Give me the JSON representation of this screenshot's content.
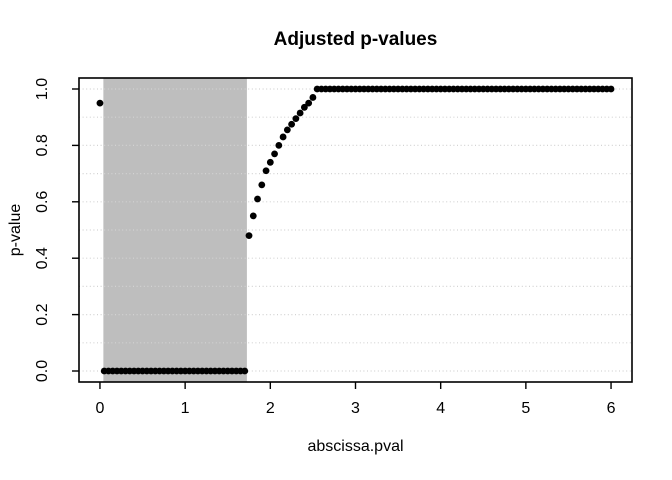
{
  "title": "Adjusted p-values",
  "chart_data": {
    "type": "scatter",
    "title": "Adjusted p-values",
    "xlabel": "abscissa.pval",
    "ylabel": "p-value",
    "xlim": [
      -0.246,
      6.246
    ],
    "ylim": [
      -0.039,
      1.039
    ],
    "x_ticks": [
      0,
      1,
      2,
      3,
      4,
      5,
      6
    ],
    "x_tick_labels": [
      "0",
      "1",
      "2",
      "3",
      "4",
      "5",
      "6"
    ],
    "y_ticks": [
      0.0,
      0.2,
      0.4,
      0.6,
      0.8,
      1.0
    ],
    "y_tick_labels": [
      "0.0",
      "0.2",
      "0.4",
      "0.6",
      "0.8",
      "1.0"
    ],
    "grid": {
      "horizontal_lines_y": [
        0,
        0.1,
        0.2,
        0.3,
        0.4,
        0.5,
        0.6,
        0.7,
        0.8,
        0.9,
        1.0
      ],
      "style": "dotted",
      "vertical": false
    },
    "legend": null,
    "rejection_region": {
      "x_start": 0.04,
      "x_end": 1.725,
      "color": "#BEBEBE"
    },
    "colors": {
      "points": "#000000",
      "region": "#BEBEBE",
      "grid": "#D3D3D3",
      "axis": "#000000"
    },
    "point_style": {
      "shape": "filled-circle",
      "radius_px": 3.4
    },
    "points": [
      [
        0,
        0.95
      ],
      [
        0.05,
        0
      ],
      [
        0.1,
        0
      ],
      [
        0.15,
        0
      ],
      [
        0.2,
        0
      ],
      [
        0.25,
        0
      ],
      [
        0.3,
        0
      ],
      [
        0.35,
        0
      ],
      [
        0.4,
        0
      ],
      [
        0.45,
        0
      ],
      [
        0.5,
        0
      ],
      [
        0.55,
        0
      ],
      [
        0.6,
        0
      ],
      [
        0.65,
        0
      ],
      [
        0.7,
        0
      ],
      [
        0.75,
        0
      ],
      [
        0.8,
        0
      ],
      [
        0.85,
        0
      ],
      [
        0.9,
        0
      ],
      [
        0.95,
        0
      ],
      [
        1,
        0
      ],
      [
        1.05,
        0
      ],
      [
        1.1,
        0
      ],
      [
        1.15,
        0
      ],
      [
        1.2,
        0
      ],
      [
        1.25,
        0
      ],
      [
        1.3,
        0
      ],
      [
        1.35,
        0
      ],
      [
        1.4,
        0
      ],
      [
        1.45,
        0
      ],
      [
        1.5,
        0
      ],
      [
        1.55,
        0
      ],
      [
        1.6,
        0
      ],
      [
        1.65,
        0
      ],
      [
        1.7,
        0
      ],
      [
        1.75,
        0.48
      ],
      [
        1.8,
        0.55
      ],
      [
        1.85,
        0.61
      ],
      [
        1.9,
        0.66
      ],
      [
        1.95,
        0.71
      ],
      [
        2,
        0.74
      ],
      [
        2.05,
        0.77
      ],
      [
        2.1,
        0.8
      ],
      [
        2.15,
        0.83
      ],
      [
        2.2,
        0.855
      ],
      [
        2.25,
        0.875
      ],
      [
        2.3,
        0.895
      ],
      [
        2.35,
        0.915
      ],
      [
        2.4,
        0.935
      ],
      [
        2.45,
        0.95
      ],
      [
        2.5,
        0.97
      ],
      [
        2.55,
        1
      ],
      [
        2.6,
        1
      ],
      [
        2.65,
        1
      ],
      [
        2.7,
        1
      ],
      [
        2.75,
        1
      ],
      [
        2.8,
        1
      ],
      [
        2.85,
        1
      ],
      [
        2.9,
        1
      ],
      [
        2.95,
        1
      ],
      [
        3,
        1
      ],
      [
        3.05,
        1
      ],
      [
        3.1,
        1
      ],
      [
        3.15,
        1
      ],
      [
        3.2,
        1
      ],
      [
        3.25,
        1
      ],
      [
        3.3,
        1
      ],
      [
        3.35,
        1
      ],
      [
        3.4,
        1
      ],
      [
        3.45,
        1
      ],
      [
        3.5,
        1
      ],
      [
        3.55,
        1
      ],
      [
        3.6,
        1
      ],
      [
        3.65,
        1
      ],
      [
        3.7,
        1
      ],
      [
        3.75,
        1
      ],
      [
        3.8,
        1
      ],
      [
        3.85,
        1
      ],
      [
        3.9,
        1
      ],
      [
        3.95,
        1
      ],
      [
        4,
        1
      ],
      [
        4.05,
        1
      ],
      [
        4.1,
        1
      ],
      [
        4.15,
        1
      ],
      [
        4.2,
        1
      ],
      [
        4.25,
        1
      ],
      [
        4.3,
        1
      ],
      [
        4.35,
        1
      ],
      [
        4.4,
        1
      ],
      [
        4.45,
        1
      ],
      [
        4.5,
        1
      ],
      [
        4.55,
        1
      ],
      [
        4.6,
        1
      ],
      [
        4.65,
        1
      ],
      [
        4.7,
        1
      ],
      [
        4.75,
        1
      ],
      [
        4.8,
        1
      ],
      [
        4.85,
        1
      ],
      [
        4.9,
        1
      ],
      [
        4.95,
        1
      ],
      [
        5,
        1
      ],
      [
        5.05,
        1
      ],
      [
        5.1,
        1
      ],
      [
        5.15,
        1
      ],
      [
        5.2,
        1
      ],
      [
        5.25,
        1
      ],
      [
        5.3,
        1
      ],
      [
        5.35,
        1
      ],
      [
        5.4,
        1
      ],
      [
        5.45,
        1
      ],
      [
        5.5,
        1
      ],
      [
        5.55,
        1
      ],
      [
        5.6,
        1
      ],
      [
        5.65,
        1
      ],
      [
        5.7,
        1
      ],
      [
        5.75,
        1
      ],
      [
        5.8,
        1
      ],
      [
        5.85,
        1
      ],
      [
        5.9,
        1
      ],
      [
        5.95,
        1
      ],
      [
        6,
        1
      ]
    ]
  }
}
